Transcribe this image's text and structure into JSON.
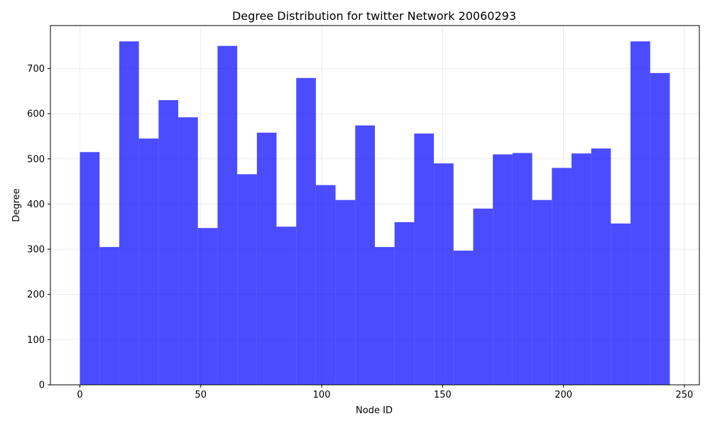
{
  "chart_data": {
    "type": "bar",
    "title": "Degree Distribution for twitter Network 20060293",
    "xlabel": "Node ID",
    "ylabel": "Degree",
    "xlim": [
      -12.2,
      256.2
    ],
    "ylim": [
      0,
      795
    ],
    "x_ticks": [
      0,
      50,
      100,
      150,
      200,
      250
    ],
    "y_ticks": [
      0,
      100,
      200,
      300,
      400,
      500,
      600,
      700
    ],
    "bin_edges": [
      0,
      8.13,
      16.27,
      24.4,
      32.53,
      40.67,
      48.8,
      56.93,
      65.07,
      73.2,
      81.33,
      89.47,
      97.6,
      105.73,
      113.87,
      122,
      130.13,
      138.27,
      146.4,
      154.53,
      162.67,
      170.8,
      178.93,
      187.07,
      195.2,
      203.33,
      211.47,
      219.6,
      227.73,
      235.87,
      244
    ],
    "values": [
      515,
      305,
      760,
      545,
      630,
      592,
      347,
      750,
      466,
      558,
      350,
      679,
      442,
      409,
      574,
      305,
      360,
      556,
      490,
      297,
      390,
      510,
      513,
      409,
      480,
      512,
      523,
      357,
      760,
      690
    ],
    "bar_color": "#0000ff",
    "bar_opacity": 0.7,
    "grid": true
  }
}
